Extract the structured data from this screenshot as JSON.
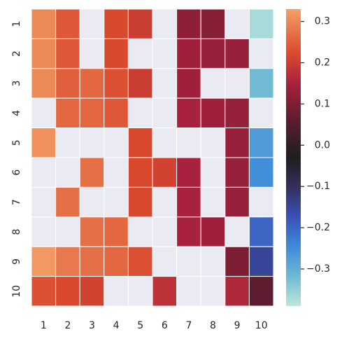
{
  "chart_data": {
    "type": "heatmap",
    "title": "",
    "xlabel": "",
    "ylabel": "",
    "x_labels": [
      "1",
      "2",
      "3",
      "4",
      "5",
      "6",
      "7",
      "8",
      "9",
      "10"
    ],
    "y_labels": [
      "1",
      "2",
      "3",
      "4",
      "5",
      "6",
      "7",
      "8",
      "9",
      "10"
    ],
    "colormap": "icefire",
    "vmin": -0.39,
    "vmax": 0.33,
    "colorbar_ticks": [
      0.3,
      0.2,
      0.1,
      0.0,
      -0.1,
      -0.2,
      -0.3
    ],
    "colorbar_tick_labels": [
      "0.3",
      "0.2",
      "0.1",
      "0.0",
      "−0.1",
      "−0.2",
      "−0.3"
    ],
    "missing_color": "#eaeaf2",
    "grid_color": "#ffffff",
    "values": [
      [
        0.3,
        0.24,
        null,
        0.22,
        0.2,
        null,
        0.12,
        0.11,
        null,
        -0.37
      ],
      [
        0.3,
        0.24,
        null,
        0.22,
        null,
        null,
        0.14,
        0.13,
        0.13,
        null
      ],
      [
        0.3,
        0.25,
        0.26,
        0.23,
        0.2,
        null,
        0.14,
        null,
        null,
        -0.32
      ],
      [
        null,
        0.26,
        0.26,
        0.24,
        null,
        null,
        0.15,
        0.14,
        0.13,
        null
      ],
      [
        0.31,
        null,
        null,
        null,
        0.22,
        null,
        null,
        null,
        0.13,
        -0.27
      ],
      [
        null,
        null,
        0.27,
        null,
        0.22,
        0.21,
        0.15,
        null,
        0.13,
        -0.25
      ],
      [
        null,
        0.27,
        null,
        null,
        0.22,
        null,
        0.15,
        null,
        0.13,
        null
      ],
      [
        null,
        null,
        0.27,
        0.26,
        null,
        null,
        0.15,
        0.14,
        null,
        -0.2
      ],
      [
        0.32,
        0.28,
        0.27,
        0.26,
        0.23,
        null,
        null,
        null,
        0.1,
        -0.15
      ],
      [
        0.23,
        0.22,
        0.21,
        null,
        null,
        0.18,
        null,
        null,
        0.16,
        0.06
      ]
    ]
  }
}
